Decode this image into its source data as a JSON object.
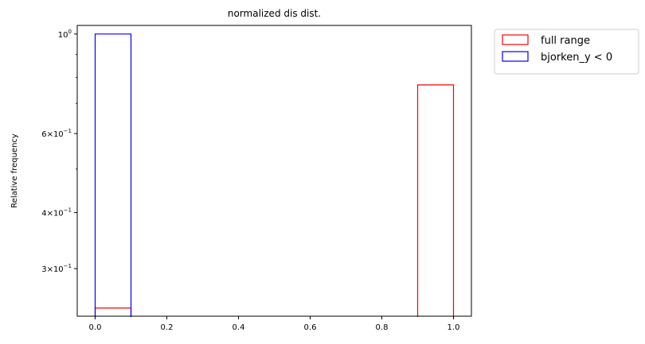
{
  "chart_data": {
    "type": "bar",
    "title": "normalized dis dist.",
    "xlabel": "",
    "ylabel": "Relative frequency",
    "yscale": "log",
    "xlim": [
      -0.05,
      1.05
    ],
    "ylim": [
      0.235,
      1.045
    ],
    "grid": false,
    "legend_position": "outside-top-right",
    "x_ticks": [
      {
        "value": 0.0,
        "label": "0.0"
      },
      {
        "value": 0.2,
        "label": "0.2"
      },
      {
        "value": 0.4,
        "label": "0.4"
      },
      {
        "value": 0.6,
        "label": "0.6"
      },
      {
        "value": 0.8,
        "label": "0.8"
      },
      {
        "value": 1.0,
        "label": "1.0"
      }
    ],
    "y_major_ticks": [
      {
        "value": 1.0,
        "base": "10",
        "exp": "0",
        "prefix": ""
      },
      {
        "value": 0.6,
        "base": "10",
        "exp": "−1",
        "prefix": "6×"
      },
      {
        "value": 0.4,
        "base": "10",
        "exp": "−1",
        "prefix": "4×"
      },
      {
        "value": 0.3,
        "base": "10",
        "exp": "−1",
        "prefix": "3×"
      }
    ],
    "y_minor_ticks": [
      0.5,
      0.7,
      0.8,
      0.9
    ],
    "series": [
      {
        "name": "full range",
        "color": "#ff0000",
        "bins": [
          {
            "x0": 0.0,
            "x1": 0.1,
            "value": 0.245
          },
          {
            "x0": 0.9,
            "x1": 1.0,
            "value": 0.77
          }
        ]
      },
      {
        "name": "bjorken_y < 0",
        "color": "#0000ff",
        "bins": [
          {
            "x0": 0.0,
            "x1": 0.1,
            "value": 1.0
          }
        ]
      }
    ]
  }
}
